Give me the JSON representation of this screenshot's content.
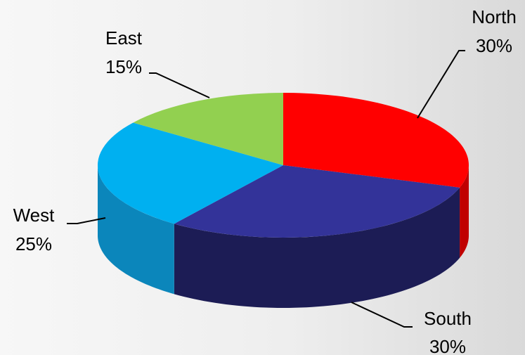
{
  "chart_data": {
    "type": "pie",
    "style": "3d",
    "title": "",
    "slices": [
      {
        "label": "North",
        "percent_label": "30%",
        "value": 30,
        "color": "#ff0000",
        "side_color": "#c00000"
      },
      {
        "label": "South",
        "percent_label": "30%",
        "value": 30,
        "color": "#333399",
        "side_color": "#1c1c55"
      },
      {
        "label": "West",
        "percent_label": "25%",
        "value": 25,
        "color": "#00b0f0",
        "side_color": "#0b86bb"
      },
      {
        "label": "East",
        "percent_label": "15%",
        "value": 15,
        "color": "#92d050",
        "side_color": "#6a9a3a"
      }
    ],
    "legend": "none"
  }
}
